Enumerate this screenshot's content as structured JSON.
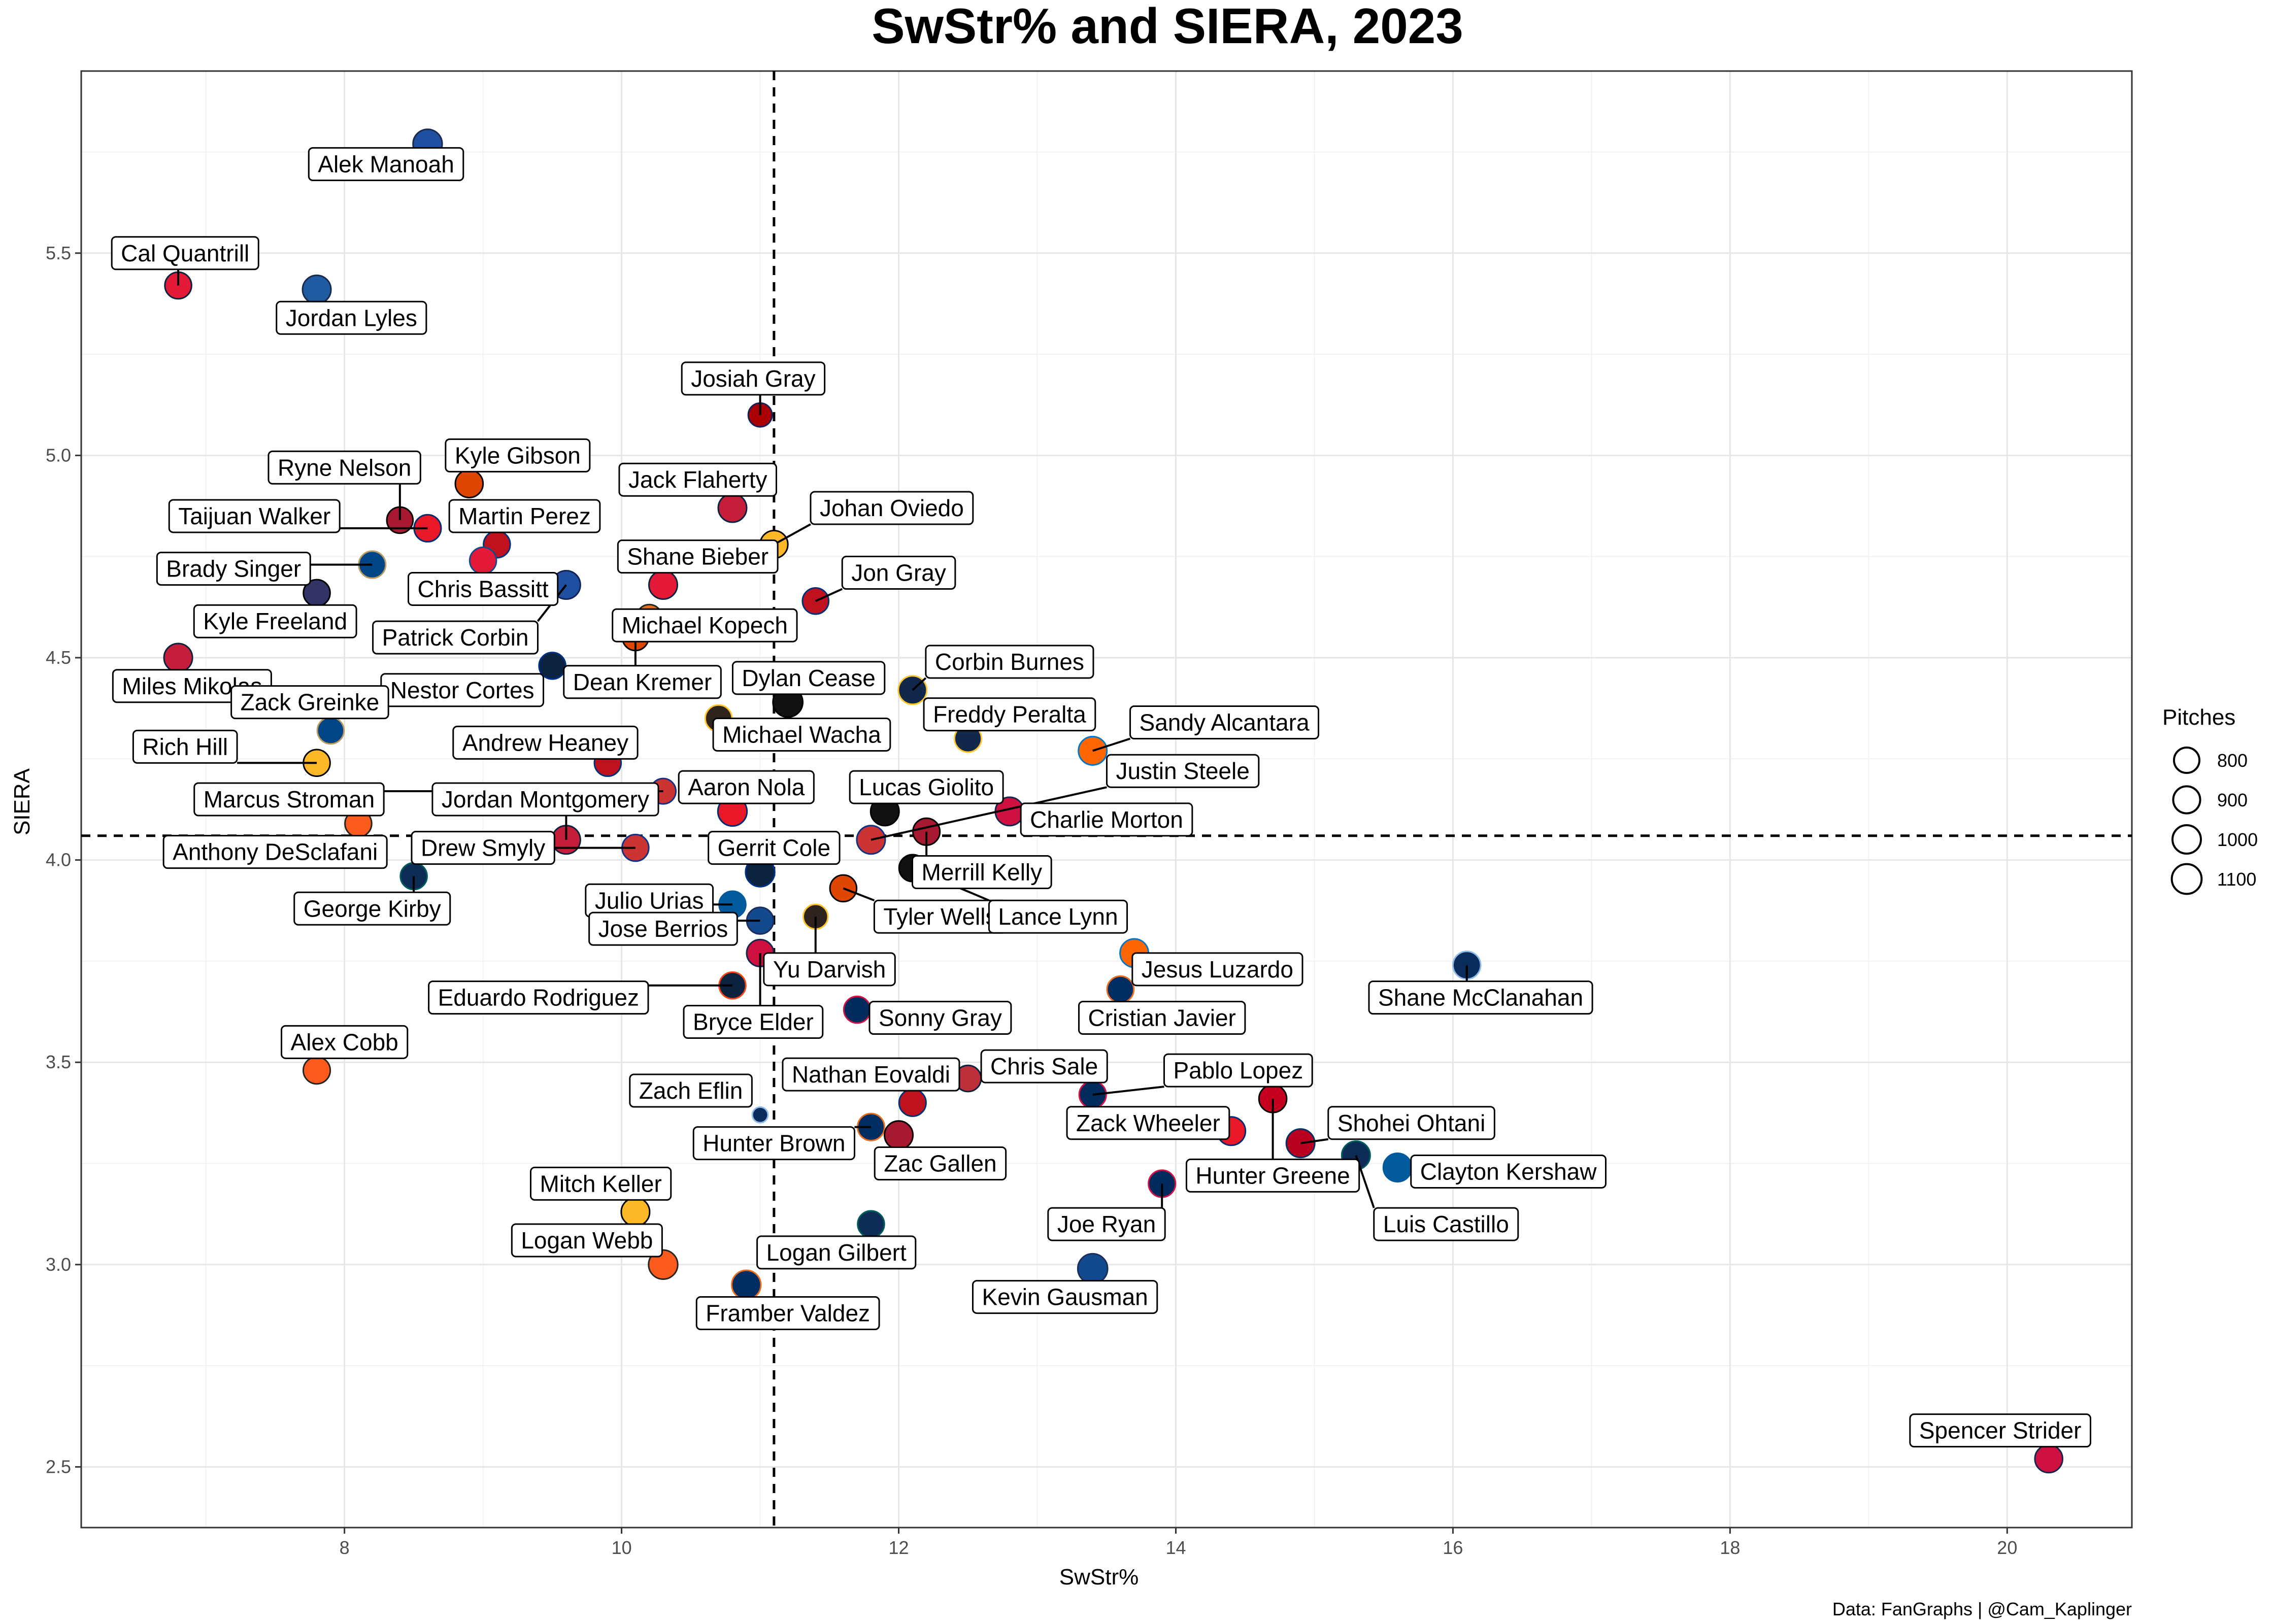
{
  "chart_data": {
    "type": "scatter",
    "title": "SwStr% and SIERA, 2023",
    "xlabel": "SwStr%",
    "ylabel": "SIERA",
    "xlim": [
      6.1,
      20.9
    ],
    "ylim": [
      2.35,
      5.95
    ],
    "x_ticks": [
      8,
      10,
      12,
      14,
      16,
      18,
      20
    ],
    "y_ticks": [
      2.5,
      3.0,
      3.5,
      4.0,
      4.5,
      5.0,
      5.5
    ],
    "x_tick_labels": [
      "8",
      "10",
      "12",
      "14",
      "16",
      "18",
      "20"
    ],
    "y_tick_labels": [
      "2.5",
      "3.0",
      "3.5",
      "4.0",
      "4.5",
      "5.0",
      "5.5"
    ],
    "grid": true,
    "reference_lines": {
      "vertical_x": 11.1,
      "horizontal_y": 4.06,
      "style": "dashed"
    },
    "size_legend": {
      "title": "Pitches",
      "placement": "right",
      "entries": [
        {
          "label": "800",
          "value": 800
        },
        {
          "label": "900",
          "value": 900
        },
        {
          "label": "1000",
          "value": 1000
        },
        {
          "label": "1100",
          "value": 1100
        }
      ]
    },
    "caption": "Data: FanGraphs | @Cam_Kaplinger",
    "points": [
      {
        "name": "Alek Manoah",
        "x": 8.6,
        "y": 5.77,
        "pitches": 1050,
        "color": "#1E4FA0",
        "stroke": "#1B2A4A",
        "lx": 8.3,
        "ly": 5.72
      },
      {
        "name": "Cal Quantrill",
        "x": 6.8,
        "y": 5.42,
        "pitches": 880,
        "color": "#E31937",
        "stroke": "#0C2340",
        "lx": 6.85,
        "ly": 5.5
      },
      {
        "name": "Jordan Lyles",
        "x": 7.8,
        "y": 5.41,
        "pitches": 1000,
        "color": "#1E5BA0",
        "stroke": "#1B2A4A",
        "lx": 8.05,
        "ly": 5.34
      },
      {
        "name": "Josiah Gray",
        "x": 11.0,
        "y": 5.1,
        "pitches": 700,
        "color": "#AB0003",
        "stroke": "#14225A",
        "lx": 10.95,
        "ly": 5.19
      },
      {
        "name": "Ryne Nelson",
        "x": 8.4,
        "y": 4.84,
        "pitches": 850,
        "color": "#A71930",
        "stroke": "#000000",
        "lx": 8.0,
        "ly": 4.97
      },
      {
        "name": "Kyle Gibson",
        "x": 8.9,
        "y": 4.93,
        "pitches": 950,
        "color": "#DF4601",
        "stroke": "#000000",
        "lx": 9.25,
        "ly": 5.0
      },
      {
        "name": "Taijuan Walker",
        "x": 8.6,
        "y": 4.82,
        "pitches": 900,
        "color": "#E81828",
        "stroke": "#002D72",
        "lx": 7.35,
        "ly": 4.85
      },
      {
        "name": "Martin Perez",
        "x": 9.1,
        "y": 4.78,
        "pitches": 880,
        "color": "#C0111F",
        "stroke": "#003278",
        "lx": 9.3,
        "ly": 4.85
      },
      {
        "name": "Jack Flaherty",
        "x": 10.8,
        "y": 4.87,
        "pitches": 1000,
        "color": "#C41E3A",
        "stroke": "#0C2340",
        "lx": 10.55,
        "ly": 4.94
      },
      {
        "name": "Johan Oviedo",
        "x": 11.1,
        "y": 4.78,
        "pitches": 950,
        "color": "#FDB827",
        "stroke": "#000000",
        "lx": 11.95,
        "ly": 4.87
      },
      {
        "name": "Brady Singer",
        "x": 8.2,
        "y": 4.73,
        "pitches": 900,
        "color": "#004687",
        "stroke": "#BD9B60",
        "lx": 7.2,
        "ly": 4.72
      },
      {
        "name": "Chris Bassitt",
        "x": 9.0,
        "y": 4.74,
        "pitches": 880,
        "color": "#E31937",
        "stroke": "#134A8E",
        "lx": 9.0,
        "ly": 4.67
      },
      {
        "name": "Shane Bieber",
        "x": 10.3,
        "y": 4.68,
        "pitches": 1000,
        "color": "#E31937",
        "stroke": "#0C2340",
        "lx": 10.55,
        "ly": 4.75
      },
      {
        "name": "Jon Gray",
        "x": 11.4,
        "y": 4.64,
        "pitches": 850,
        "color": "#C0111F",
        "stroke": "#003278",
        "lx": 12.0,
        "ly": 4.71
      },
      {
        "name": "Patrick Corbin",
        "x": 9.6,
        "y": 4.68,
        "pitches": 1000,
        "color": "#1E4FA0",
        "stroke": "#14225A",
        "lx": 8.8,
        "ly": 4.55
      },
      {
        "name": "Kyle Freeland",
        "x": 7.8,
        "y": 4.66,
        "pitches": 880,
        "color": "#333366",
        "stroke": "#000000",
        "lx": 7.5,
        "ly": 4.59
      },
      {
        "name": "Michael Kopech",
        "x": 10.2,
        "y": 4.6,
        "pitches": 800,
        "color": "#E36F1E",
        "stroke": "#27251F",
        "lx": 10.6,
        "ly": 4.58
      },
      {
        "name": "Dean Kremer",
        "x": 10.1,
        "y": 4.55,
        "pitches": 850,
        "color": "#DF4601",
        "stroke": "#000000",
        "lx": 10.15,
        "ly": 4.44
      },
      {
        "name": "Miles Mikolas",
        "x": 6.8,
        "y": 4.5,
        "pitches": 1000,
        "color": "#C41E3A",
        "stroke": "#0C2340",
        "lx": 6.9,
        "ly": 4.43
      },
      {
        "name": "Nestor Cortes",
        "x": 9.5,
        "y": 4.48,
        "pitches": 880,
        "color": "#0C2340",
        "stroke": "#003087",
        "lx": 8.85,
        "ly": 4.42
      },
      {
        "name": "Dylan Cease",
        "x": 11.2,
        "y": 4.39,
        "pitches": 1100,
        "color": "#111111",
        "stroke": "#000000",
        "lx": 11.35,
        "ly": 4.45
      },
      {
        "name": "Corbin Burnes",
        "x": 12.1,
        "y": 4.42,
        "pitches": 1000,
        "color": "#12284B",
        "stroke": "#FFC52F",
        "lx": 12.8,
        "ly": 4.49
      },
      {
        "name": "Zack Greinke",
        "x": 7.9,
        "y": 4.32,
        "pitches": 880,
        "color": "#004687",
        "stroke": "#BD9B60",
        "lx": 7.75,
        "ly": 4.39
      },
      {
        "name": "Michael Wacha",
        "x": 10.7,
        "y": 4.35,
        "pitches": 880,
        "color": "#2F241D",
        "stroke": "#FFC425",
        "lx": 11.3,
        "ly": 4.31
      },
      {
        "name": "Freddy Peralta",
        "x": 12.5,
        "y": 4.3,
        "pitches": 900,
        "color": "#12284B",
        "stroke": "#FFC52F",
        "lx": 12.8,
        "ly": 4.36
      },
      {
        "name": "Sandy Alcantara",
        "x": 13.4,
        "y": 4.27,
        "pitches": 1000,
        "color": "#FF6600",
        "stroke": "#0077C8",
        "lx": 14.35,
        "ly": 4.34
      },
      {
        "name": "Rich Hill",
        "x": 7.8,
        "y": 4.24,
        "pitches": 880,
        "color": "#FDB827",
        "stroke": "#000000",
        "lx": 6.85,
        "ly": 4.28
      },
      {
        "name": "Andrew Heaney",
        "x": 9.9,
        "y": 4.24,
        "pitches": 880,
        "color": "#C0111F",
        "stroke": "#003278",
        "lx": 9.45,
        "ly": 4.29
      },
      {
        "name": "Justin Steele",
        "x": 11.8,
        "y": 4.05,
        "pitches": 1000,
        "color": "#CC3433",
        "stroke": "#0E3386",
        "lx": 14.05,
        "ly": 4.22
      },
      {
        "name": "Aaron Nola",
        "x": 10.8,
        "y": 4.12,
        "pitches": 1050,
        "color": "#E81828",
        "stroke": "#002D72",
        "lx": 10.9,
        "ly": 4.18
      },
      {
        "name": "Marcus Stroman",
        "x": 10.3,
        "y": 4.17,
        "pitches": 800,
        "color": "#CC3433",
        "stroke": "#0E3386",
        "lx": 7.6,
        "ly": 4.15
      },
      {
        "name": "Lucas Giolito",
        "x": 11.9,
        "y": 4.12,
        "pitches": 1000,
        "color": "#111111",
        "stroke": "#000000",
        "lx": 12.2,
        "ly": 4.18
      },
      {
        "name": "Charlie Morton",
        "x": 12.8,
        "y": 4.12,
        "pitches": 1000,
        "color": "#CE1141",
        "stroke": "#13274F",
        "lx": 13.5,
        "ly": 4.1
      },
      {
        "name": "Jordan Montgomery",
        "x": 9.6,
        "y": 4.05,
        "pitches": 1000,
        "color": "#C41E3A",
        "stroke": "#0C2340",
        "lx": 9.45,
        "ly": 4.15
      },
      {
        "name": "Drew Smyly",
        "x": 10.1,
        "y": 4.03,
        "pitches": 880,
        "color": "#CC3433",
        "stroke": "#0E3386",
        "lx": 9.0,
        "ly": 4.03
      },
      {
        "name": "Merrill Kelly",
        "x": 12.2,
        "y": 4.07,
        "pitches": 900,
        "color": "#A71930",
        "stroke": "#000000",
        "lx": 12.6,
        "ly": 3.97
      },
      {
        "name": "Anthony DeSclafani",
        "x": 8.1,
        "y": 4.09,
        "pitches": 880,
        "color": "#FD5A1E",
        "stroke": "#27251F",
        "lx": 7.5,
        "ly": 4.02
      },
      {
        "name": "Gerrit Cole",
        "x": 11.0,
        "y": 3.97,
        "pitches": 1050,
        "color": "#0C2340",
        "stroke": "#003087",
        "lx": 11.1,
        "ly": 4.03
      },
      {
        "name": "George Kirby",
        "x": 8.5,
        "y": 3.96,
        "pitches": 880,
        "color": "#0C2C56",
        "stroke": "#005C5C",
        "lx": 8.2,
        "ly": 3.88
      },
      {
        "name": "Tyler Wells",
        "x": 11.6,
        "y": 3.93,
        "pitches": 880,
        "color": "#DF4601",
        "stroke": "#000000",
        "lx": 12.3,
        "ly": 3.86
      },
      {
        "name": "Lance Lynn",
        "x": 12.1,
        "y": 3.98,
        "pitches": 900,
        "color": "#111111",
        "stroke": "#000000",
        "lx": 13.15,
        "ly": 3.86
      },
      {
        "name": "Julio Urias",
        "x": 10.8,
        "y": 3.89,
        "pitches": 880,
        "color": "#005A9C",
        "stroke": "#005A9C",
        "lx": 10.2,
        "ly": 3.9
      },
      {
        "name": "Jose Berrios",
        "x": 11.0,
        "y": 3.85,
        "pitches": 880,
        "color": "#134A8E",
        "stroke": "#1D2D5C",
        "lx": 10.3,
        "ly": 3.83
      },
      {
        "name": "Yu Darvish",
        "x": 11.4,
        "y": 3.86,
        "pitches": 750,
        "color": "#2F241D",
        "stroke": "#FFC425",
        "lx": 11.5,
        "ly": 3.73
      },
      {
        "name": "Jesus Luzardo",
        "x": 13.7,
        "y": 3.77,
        "pitches": 1000,
        "color": "#FF6600",
        "stroke": "#0077C8",
        "lx": 14.3,
        "ly": 3.73
      },
      {
        "name": "Shane McClanahan",
        "x": 16.1,
        "y": 3.74,
        "pitches": 950,
        "color": "#092C5C",
        "stroke": "#8FBCE6",
        "lx": 16.2,
        "ly": 3.66
      },
      {
        "name": "Eduardo Rodriguez",
        "x": 10.8,
        "y": 3.69,
        "pitches": 880,
        "color": "#0C2340",
        "stroke": "#FA4616",
        "lx": 9.4,
        "ly": 3.66
      },
      {
        "name": "Cristian Javier",
        "x": 13.6,
        "y": 3.68,
        "pitches": 880,
        "color": "#002D62",
        "stroke": "#EB6E1F",
        "lx": 13.9,
        "ly": 3.61
      },
      {
        "name": "Bryce Elder",
        "x": 11.0,
        "y": 3.77,
        "pitches": 900,
        "color": "#CE1141",
        "stroke": "#13274F",
        "lx": 10.95,
        "ly": 3.6
      },
      {
        "name": "Sonny Gray",
        "x": 11.7,
        "y": 3.63,
        "pitches": 880,
        "color": "#002B5C",
        "stroke": "#D31145",
        "lx": 12.3,
        "ly": 3.61
      },
      {
        "name": "Alex Cobb",
        "x": 7.8,
        "y": 3.48,
        "pitches": 900,
        "color": "#FD5A1E",
        "stroke": "#27251F",
        "lx": 8.0,
        "ly": 3.55
      },
      {
        "name": "Chris Sale",
        "x": 12.5,
        "y": 3.46,
        "pitches": 850,
        "color": "#BD3039",
        "stroke": "#0C2340",
        "lx": 13.05,
        "ly": 3.49
      },
      {
        "name": "Pablo Lopez",
        "x": 13.4,
        "y": 3.42,
        "pitches": 900,
        "color": "#002B5C",
        "stroke": "#D31145",
        "lx": 14.45,
        "ly": 3.48
      },
      {
        "name": "Nathan Eovaldi",
        "x": 12.1,
        "y": 3.4,
        "pitches": 900,
        "color": "#C0111F",
        "stroke": "#003278",
        "lx": 11.8,
        "ly": 3.47
      },
      {
        "name": "Zach Eflin",
        "x": 11.0,
        "y": 3.37,
        "pitches": 300,
        "color": "#092C5C",
        "stroke": "#8FBCE6",
        "lx": 10.5,
        "ly": 3.43
      },
      {
        "name": "Hunter Greene",
        "x": 14.7,
        "y": 3.41,
        "pitches": 950,
        "color": "#C6011F",
        "stroke": "#000000",
        "lx": 14.7,
        "ly": 3.22
      },
      {
        "name": "Zack Wheeler",
        "x": 14.4,
        "y": 3.33,
        "pitches": 1000,
        "color": "#E81828",
        "stroke": "#002D72",
        "lx": 13.8,
        "ly": 3.35
      },
      {
        "name": "Shohei Ohtani",
        "x": 14.9,
        "y": 3.3,
        "pitches": 1000,
        "color": "#BA0021",
        "stroke": "#003263",
        "lx": 15.7,
        "ly": 3.35
      },
      {
        "name": "Hunter Brown",
        "x": 11.8,
        "y": 3.34,
        "pitches": 900,
        "color": "#002D62",
        "stroke": "#EB6E1F",
        "lx": 11.1,
        "ly": 3.3
      },
      {
        "name": "Zac Gallen",
        "x": 12.0,
        "y": 3.32,
        "pitches": 1000,
        "color": "#A71930",
        "stroke": "#000000",
        "lx": 12.3,
        "ly": 3.25
      },
      {
        "name": "Clayton Kershaw",
        "x": 15.6,
        "y": 3.24,
        "pitches": 1000,
        "color": "#005A9C",
        "stroke": "#005A9C",
        "lx": 16.4,
        "ly": 3.23
      },
      {
        "name": "Luis Castillo",
        "x": 15.3,
        "y": 3.27,
        "pitches": 1000,
        "color": "#0C2C56",
        "stroke": "#005C5C",
        "lx": 15.95,
        "ly": 3.1
      },
      {
        "name": "Joe Ryan",
        "x": 13.9,
        "y": 3.2,
        "pitches": 900,
        "color": "#002B5C",
        "stroke": "#D31145",
        "lx": 13.5,
        "ly": 3.1
      },
      {
        "name": "Mitch Keller",
        "x": 10.1,
        "y": 3.13,
        "pitches": 1000,
        "color": "#FDB827",
        "stroke": "#000000",
        "lx": 9.85,
        "ly": 3.2
      },
      {
        "name": "Logan Webb",
        "x": 10.3,
        "y": 3.0,
        "pitches": 1050,
        "color": "#FD5A1E",
        "stroke": "#27251F",
        "lx": 9.75,
        "ly": 3.06
      },
      {
        "name": "Logan Gilbert",
        "x": 11.8,
        "y": 3.1,
        "pitches": 880,
        "color": "#0C2C56",
        "stroke": "#005C5C",
        "lx": 11.55,
        "ly": 3.03
      },
      {
        "name": "Kevin Gausman",
        "x": 13.4,
        "y": 2.99,
        "pitches": 1100,
        "color": "#134A8E",
        "stroke": "#1D2D5C",
        "lx": 13.2,
        "ly": 2.92
      },
      {
        "name": "Framber Valdez",
        "x": 10.9,
        "y": 2.95,
        "pitches": 1050,
        "color": "#002D62",
        "stroke": "#EB6E1F",
        "lx": 11.2,
        "ly": 2.88
      },
      {
        "name": "Spencer Strider",
        "x": 20.3,
        "y": 2.52,
        "pitches": 950,
        "color": "#CE1141",
        "stroke": "#13274F",
        "lx": 19.95,
        "ly": 2.59
      }
    ]
  }
}
